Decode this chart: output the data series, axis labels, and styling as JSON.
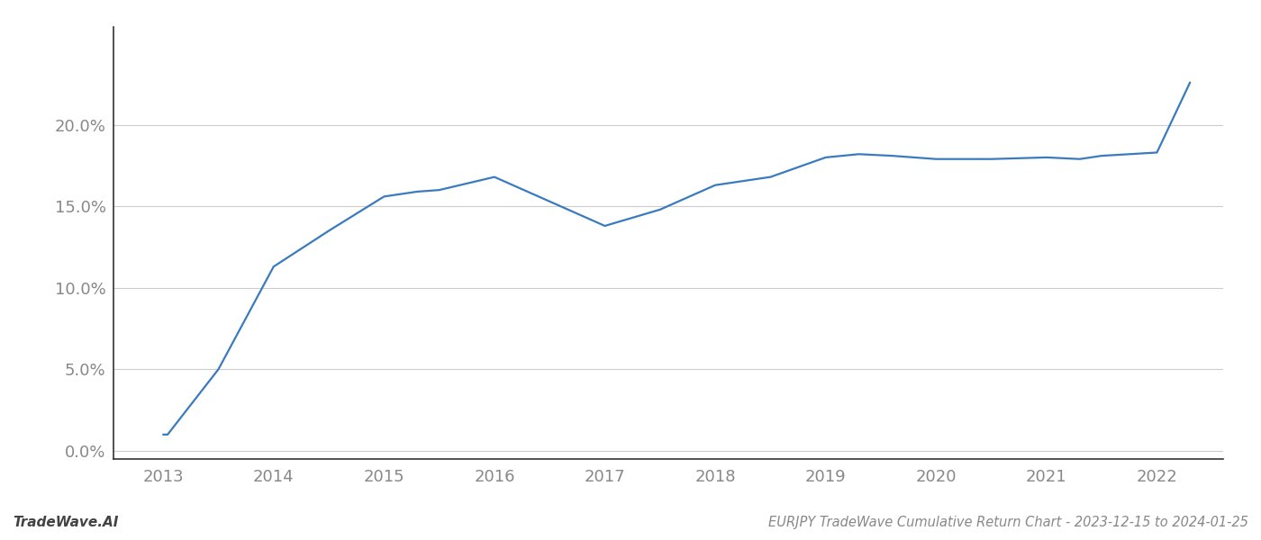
{
  "x_values": [
    2013.0,
    2013.04,
    2013.5,
    2014.0,
    2014.5,
    2015.0,
    2015.3,
    2015.5,
    2016.0,
    2016.5,
    2017.0,
    2017.5,
    2018.0,
    2018.5,
    2019.0,
    2019.3,
    2019.6,
    2020.0,
    2020.5,
    2021.0,
    2021.3,
    2021.5,
    2022.0,
    2022.3
  ],
  "y_values": [
    0.01,
    0.01,
    0.05,
    0.113,
    0.135,
    0.156,
    0.159,
    0.16,
    0.168,
    0.153,
    0.138,
    0.148,
    0.163,
    0.168,
    0.18,
    0.182,
    0.181,
    0.179,
    0.179,
    0.18,
    0.179,
    0.181,
    0.183,
    0.226
  ],
  "line_color": "#3a7bbf",
  "line_width": 1.6,
  "background_color": "#ffffff",
  "grid_color": "#cccccc",
  "title": "EURJPY TradeWave Cumulative Return Chart - 2023-12-15 to 2024-01-25",
  "watermark": "TradeWave.AI",
  "xlim": [
    2012.55,
    2022.6
  ],
  "ylim": [
    -0.005,
    0.26
  ],
  "yticks": [
    0.0,
    0.05,
    0.1,
    0.15,
    0.2
  ],
  "ytick_labels": [
    "0.0%",
    "5.0%",
    "10.0%",
    "15.0%",
    "20.0%"
  ],
  "xticks": [
    2013,
    2014,
    2015,
    2016,
    2017,
    2018,
    2019,
    2020,
    2021,
    2022
  ],
  "figsize": [
    14.0,
    6.0
  ],
  "dpi": 100,
  "tick_fontsize": 13,
  "label_color": "#888888",
  "spine_color": "#333333",
  "title_fontsize": 10.5,
  "watermark_fontsize": 11
}
